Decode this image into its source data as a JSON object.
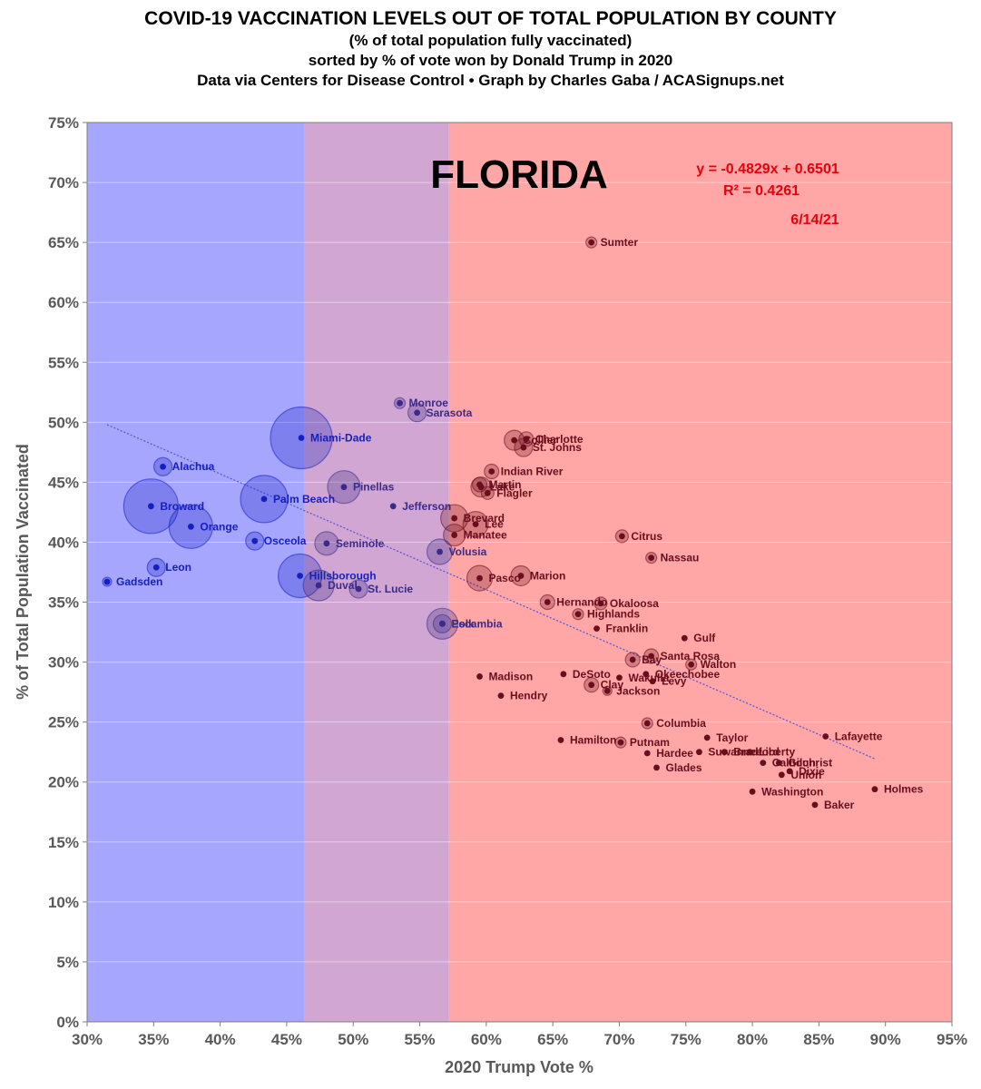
{
  "title": {
    "line1": "COVID-19 VACCINATION LEVELS OUT OF TOTAL POPULATION BY COUNTY",
    "line2": "(% of total population fully vaccinated)",
    "line3": "sorted by % of vote won by Donald Trump in 2020",
    "line4": "Data via Centers for Disease Control • Graph by Charles Gaba / ACASignups.net"
  },
  "annotations": {
    "state": "FLORIDA",
    "equation": "y = -0.4829x + 0.6501",
    "r2": "R² = 0.4261",
    "date": "6/14/21"
  },
  "chart_data": {
    "type": "scatter",
    "xlabel": "2020 Trump Vote %",
    "ylabel": "% of Total Population Vaccinated",
    "xlim": [
      30,
      95
    ],
    "ylim": [
      0,
      75
    ],
    "x_ticks": [
      "30%",
      "35%",
      "40%",
      "45%",
      "50%",
      "55%",
      "60%",
      "65%",
      "70%",
      "75%",
      "80%",
      "85%",
      "90%",
      "95%"
    ],
    "y_ticks": [
      "0%",
      "5%",
      "10%",
      "15%",
      "20%",
      "25%",
      "30%",
      "35%",
      "40%",
      "45%",
      "50%",
      "55%",
      "60%",
      "65%",
      "70%",
      "75%"
    ],
    "background_bands": [
      {
        "from": 30,
        "to": 46.3,
        "color": "#a6a6ff"
      },
      {
        "from": 46.3,
        "to": 57.2,
        "color": "#d2a6d2"
      },
      {
        "from": 57.2,
        "to": 95,
        "color": "#ffa6a6"
      }
    ],
    "trendline": {
      "slope": -0.4829,
      "intercept": 0.6501,
      "x_range": [
        31.5,
        89.2
      ],
      "color": "#5a5ad6"
    },
    "point_colors": {
      "blue": "#1520c0",
      "purple": "#3a2a8a",
      "red": "#6a0e1e"
    },
    "points": [
      {
        "county": "Miami-Dade",
        "x": 46.1,
        "y": 48.7,
        "r": 34,
        "party": "blue"
      },
      {
        "county": "Broward",
        "x": 34.8,
        "y": 43.0,
        "r": 30,
        "party": "blue"
      },
      {
        "county": "Palm Beach",
        "x": 43.3,
        "y": 43.6,
        "r": 26,
        "party": "blue"
      },
      {
        "county": "Hillsborough",
        "x": 46.0,
        "y": 37.2,
        "r": 24,
        "party": "blue"
      },
      {
        "county": "Orange",
        "x": 37.8,
        "y": 41.3,
        "r": 24,
        "party": "blue"
      },
      {
        "county": "Duval",
        "x": 47.4,
        "y": 36.4,
        "r": 17,
        "party": "purple"
      },
      {
        "county": "Pinellas",
        "x": 49.3,
        "y": 44.6,
        "r": 18,
        "party": "purple"
      },
      {
        "county": "Lee",
        "x": 59.2,
        "y": 41.5,
        "r": 14,
        "party": "red"
      },
      {
        "county": "Polk",
        "x": 56.7,
        "y": 33.2,
        "r": 17,
        "party": "purple"
      },
      {
        "county": "Brevard",
        "x": 57.6,
        "y": 42.0,
        "r": 15,
        "party": "red"
      },
      {
        "county": "Volusia",
        "x": 56.5,
        "y": 39.2,
        "r": 14,
        "party": "purple"
      },
      {
        "county": "Pasco",
        "x": 59.5,
        "y": 37.0,
        "r": 14,
        "party": "red"
      },
      {
        "county": "Seminole",
        "x": 48.0,
        "y": 39.9,
        "r": 13,
        "party": "purple"
      },
      {
        "county": "Sarasota",
        "x": 54.8,
        "y": 50.8,
        "r": 10,
        "party": "purple"
      },
      {
        "county": "Manatee",
        "x": 57.6,
        "y": 40.6,
        "r": 12,
        "party": "red"
      },
      {
        "county": "Collier",
        "x": 62.1,
        "y": 48.5,
        "r": 11,
        "party": "red"
      },
      {
        "county": "Marion",
        "x": 62.6,
        "y": 37.2,
        "r": 11,
        "party": "red"
      },
      {
        "county": "Lake",
        "x": 59.6,
        "y": 44.6,
        "r": 11,
        "party": "red"
      },
      {
        "county": "Osceola",
        "x": 42.6,
        "y": 40.1,
        "r": 10,
        "party": "blue"
      },
      {
        "county": "Leon",
        "x": 35.2,
        "y": 37.9,
        "r": 10,
        "party": "blue"
      },
      {
        "county": "Alachua",
        "x": 35.7,
        "y": 46.3,
        "r": 10,
        "party": "blue"
      },
      {
        "county": "St. Lucie",
        "x": 50.4,
        "y": 36.1,
        "r": 10,
        "party": "purple"
      },
      {
        "county": "Escambia",
        "x": 56.7,
        "y": 33.2,
        "r": 10,
        "party": "purple"
      },
      {
        "county": "St. Johns",
        "x": 62.8,
        "y": 47.9,
        "r": 10,
        "party": "red"
      },
      {
        "county": "Charlotte",
        "x": 63.0,
        "y": 48.6,
        "r": 8,
        "party": "red"
      },
      {
        "county": "Martin",
        "x": 59.5,
        "y": 44.8,
        "r": 8,
        "party": "red"
      },
      {
        "county": "Indian River",
        "x": 60.4,
        "y": 45.9,
        "r": 8,
        "party": "red"
      },
      {
        "county": "Okaloosa",
        "x": 68.6,
        "y": 34.9,
        "r": 7,
        "party": "red"
      },
      {
        "county": "Hernando",
        "x": 64.6,
        "y": 35.0,
        "r": 8,
        "party": "red"
      },
      {
        "county": "Bay",
        "x": 71.0,
        "y": 30.2,
        "r": 8,
        "party": "red"
      },
      {
        "county": "Santa Rosa",
        "x": 72.4,
        "y": 30.5,
        "r": 8,
        "party": "red"
      },
      {
        "county": "Flagler",
        "x": 60.1,
        "y": 44.1,
        "r": 7,
        "party": "red"
      },
      {
        "county": "Citrus",
        "x": 70.2,
        "y": 40.5,
        "r": 7,
        "party": "red"
      },
      {
        "county": "Clay",
        "x": 67.9,
        "y": 28.1,
        "r": 8,
        "party": "red"
      },
      {
        "county": "Monroe",
        "x": 53.5,
        "y": 51.6,
        "r": 6,
        "party": "purple"
      },
      {
        "county": "Nassau",
        "x": 72.4,
        "y": 38.7,
        "r": 6,
        "party": "red"
      },
      {
        "county": "Highlands",
        "x": 66.9,
        "y": 34.0,
        "r": 6,
        "party": "red"
      },
      {
        "county": "Sumter",
        "x": 67.9,
        "y": 65.0,
        "r": 6,
        "party": "red"
      },
      {
        "county": "Columbia",
        "x": 72.1,
        "y": 24.9,
        "r": 6,
        "party": "red"
      },
      {
        "county": "Putnam",
        "x": 70.1,
        "y": 23.3,
        "r": 6,
        "party": "red"
      },
      {
        "county": "Walton",
        "x": 75.4,
        "y": 29.8,
        "r": 6,
        "party": "red"
      },
      {
        "county": "Gadsden",
        "x": 31.5,
        "y": 36.7,
        "r": 5,
        "party": "blue"
      },
      {
        "county": "Jackson",
        "x": 69.1,
        "y": 27.6,
        "r": 5,
        "party": "red"
      },
      {
        "county": "Suwannee",
        "x": 76.0,
        "y": 22.5,
        "r": 4,
        "party": "red"
      },
      {
        "county": "Levy",
        "x": 72.5,
        "y": 28.4,
        "r": 4,
        "party": "red"
      },
      {
        "county": "Wakulla",
        "x": 70.0,
        "y": 28.7,
        "r": 4,
        "party": "red"
      },
      {
        "county": "Okeechobee",
        "x": 72.0,
        "y": 29.0,
        "r": 4,
        "party": "red"
      },
      {
        "county": "DeSoto",
        "x": 65.8,
        "y": 29.0,
        "r": 4,
        "party": "red"
      },
      {
        "county": "Hendry",
        "x": 61.1,
        "y": 27.2,
        "r": 4,
        "party": "red"
      },
      {
        "county": "Gulf",
        "x": 74.9,
        "y": 32.0,
        "r": 4,
        "party": "red"
      },
      {
        "county": "Franklin",
        "x": 68.3,
        "y": 32.8,
        "r": 4,
        "party": "red"
      },
      {
        "county": "Taylor",
        "x": 76.6,
        "y": 23.7,
        "r": 4,
        "party": "red"
      },
      {
        "county": "Bradford",
        "x": 77.9,
        "y": 22.5,
        "r": 4,
        "party": "red"
      },
      {
        "county": "Liberty",
        "x": 79.8,
        "y": 22.5,
        "r": 4,
        "party": "red"
      },
      {
        "county": "Gilchrist",
        "x": 82.0,
        "y": 21.6,
        "r": 4,
        "party": "red"
      },
      {
        "county": "Calhoun",
        "x": 80.8,
        "y": 21.6,
        "r": 4,
        "party": "red"
      },
      {
        "county": "Dixie",
        "x": 82.8,
        "y": 20.9,
        "r": 4,
        "party": "red"
      },
      {
        "county": "Union",
        "x": 82.2,
        "y": 20.6,
        "r": 4,
        "party": "red"
      },
      {
        "county": "Glades",
        "x": 72.8,
        "y": 21.2,
        "r": 4,
        "party": "red"
      },
      {
        "county": "Hardee",
        "x": 72.1,
        "y": 22.4,
        "r": 4,
        "party": "red"
      },
      {
        "county": "Hamilton",
        "x": 65.6,
        "y": 23.5,
        "r": 4,
        "party": "red"
      },
      {
        "county": "Madison",
        "x": 59.5,
        "y": 28.8,
        "r": 4,
        "party": "red"
      },
      {
        "county": "Jefferson",
        "x": 53.0,
        "y": 43.0,
        "r": 4,
        "party": "purple"
      },
      {
        "county": "Washington",
        "x": 80.0,
        "y": 19.2,
        "r": 4,
        "party": "red"
      },
      {
        "county": "Baker",
        "x": 84.7,
        "y": 18.1,
        "r": 4,
        "party": "red"
      },
      {
        "county": "Holmes",
        "x": 89.2,
        "y": 19.4,
        "r": 4,
        "party": "red"
      },
      {
        "county": "Lafayette",
        "x": 85.5,
        "y": 23.8,
        "r": 4,
        "party": "red"
      }
    ]
  }
}
